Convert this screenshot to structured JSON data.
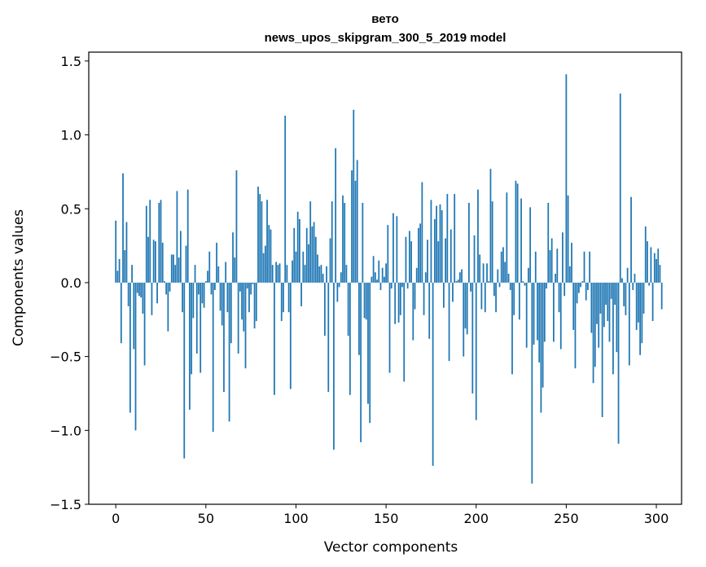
{
  "chart_data": {
    "type": "bar",
    "title": "вето",
    "subtitle": "news_upos_skipgram_300_5_2019 model",
    "xlabel": "Vector components",
    "ylabel": "Components values",
    "xlim": [
      -15,
      314
    ],
    "ylim": [
      -1.5,
      1.56
    ],
    "xticks": [
      0,
      50,
      100,
      150,
      200,
      250,
      300
    ],
    "yticks": [
      -1.5,
      -1.0,
      -0.5,
      0.0,
      0.5,
      1.0,
      1.5
    ],
    "ytick_labels": [
      "−1.5",
      "−1.0",
      "−0.5",
      "0.0",
      "0.5",
      "1.0",
      "1.5"
    ],
    "bar_color": "#1f77b4",
    "values": [
      0.42,
      0.08,
      0.16,
      -0.41,
      0.74,
      0.22,
      0.41,
      -0.16,
      -0.88,
      0.12,
      -0.45,
      -1.0,
      -0.07,
      -0.09,
      -0.1,
      -0.21,
      -0.56,
      0.52,
      0.31,
      0.56,
      -0.22,
      0.29,
      0.28,
      -0.14,
      0.54,
      0.56,
      0.27,
      0.01,
      -0.08,
      -0.33,
      -0.06,
      0.19,
      0.19,
      0.12,
      0.62,
      0.17,
      0.35,
      -0.2,
      -1.19,
      0.25,
      0.63,
      -0.86,
      -0.62,
      -0.24,
      0.12,
      -0.48,
      -0.08,
      -0.61,
      -0.14,
      -0.17,
      0.01,
      0.08,
      0.21,
      -0.08,
      -1.01,
      -0.05,
      0.27,
      0.11,
      -0.19,
      -0.29,
      -0.74,
      0.14,
      -0.2,
      -0.94,
      -0.41,
      0.34,
      0.17,
      0.76,
      -0.48,
      -0.06,
      -0.25,
      -0.33,
      -0.58,
      -0.04,
      -0.2,
      -0.08,
      -0.01,
      -0.31,
      -0.26,
      0.65,
      0.6,
      0.55,
      0.2,
      0.25,
      0.56,
      0.39,
      0.36,
      0.12,
      -0.76,
      0.14,
      0.12,
      0.13,
      -0.26,
      -0.2,
      1.13,
      0.12,
      -0.2,
      -0.72,
      0.15,
      0.37,
      0.21,
      0.48,
      0.43,
      -0.16,
      0.21,
      0.12,
      0.37,
      0.26,
      0.55,
      0.38,
      0.41,
      0.31,
      0.19,
      0.11,
      0.12,
      0.06,
      -0.36,
      0.11,
      -0.74,
      0.3,
      0.55,
      -1.13,
      0.91,
      -0.13,
      -0.03,
      0.07,
      0.59,
      0.54,
      0.12,
      -0.36,
      -0.76,
      0.76,
      1.17,
      0.69,
      0.83,
      -0.49,
      -1.08,
      0.54,
      -0.24,
      -0.25,
      -0.82,
      -0.95,
      0.04,
      0.18,
      0.07,
      0.02,
      0.15,
      -0.05,
      0.1,
      0.04,
      0.13,
      0.39,
      -0.61,
      -0.04,
      0.47,
      -0.28,
      0.45,
      -0.27,
      -0.22,
      -0.03,
      -0.67,
      0.31,
      -0.04,
      0.35,
      0.28,
      -0.39,
      -0.18,
      0.1,
      0.37,
      0.4,
      0.68,
      -0.22,
      0.07,
      0.29,
      -0.38,
      0.56,
      -1.24,
      0.43,
      0.52,
      0.28,
      0.53,
      0.49,
      -0.17,
      0.3,
      0.6,
      -0.53,
      0.36,
      -0.13,
      0.6,
      0.01,
      0.02,
      0.07,
      0.09,
      -0.5,
      -0.31,
      -0.35,
      0.54,
      -0.06,
      -0.75,
      0.32,
      -0.93,
      0.63,
      0.19,
      -0.18,
      0.13,
      -0.2,
      0.13,
      0.01,
      0.77,
      0.55,
      -0.09,
      -0.2,
      0.09,
      -0.03,
      0.21,
      0.24,
      0.14,
      0.61,
      0.06,
      -0.05,
      -0.62,
      -0.22,
      0.69,
      0.67,
      -0.25,
      0.57,
      0.01,
      -0.02,
      -0.44,
      0.1,
      0.51,
      -1.36,
      -0.42,
      0.21,
      -0.39,
      -0.54,
      -0.88,
      -0.71,
      -0.4,
      -0.04,
      0.54,
      0.22,
      0.3,
      -0.4,
      0.06,
      0.23,
      -0.2,
      -0.45,
      0.34,
      -0.09,
      1.41,
      0.59,
      0.11,
      0.27,
      -0.32,
      -0.58,
      -0.14,
      -0.07,
      -0.03,
      0.01,
      0.21,
      -0.12,
      -0.05,
      0.21,
      -0.34,
      -0.68,
      -0.57,
      -0.28,
      -0.44,
      -0.21,
      -0.91,
      -0.3,
      -0.15,
      -0.26,
      -0.4,
      -0.11,
      -0.62,
      -0.15,
      -0.47,
      -1.09,
      1.28,
      0.03,
      -0.16,
      -0.22,
      0.1,
      -0.56,
      0.58,
      -0.05,
      0.06,
      -0.32,
      -0.27,
      -0.49,
      -0.41,
      -0.21,
      0.38,
      0.28,
      -0.02,
      0.24,
      -0.26,
      0.2,
      0.16,
      0.23,
      0.12,
      -0.18
    ]
  }
}
